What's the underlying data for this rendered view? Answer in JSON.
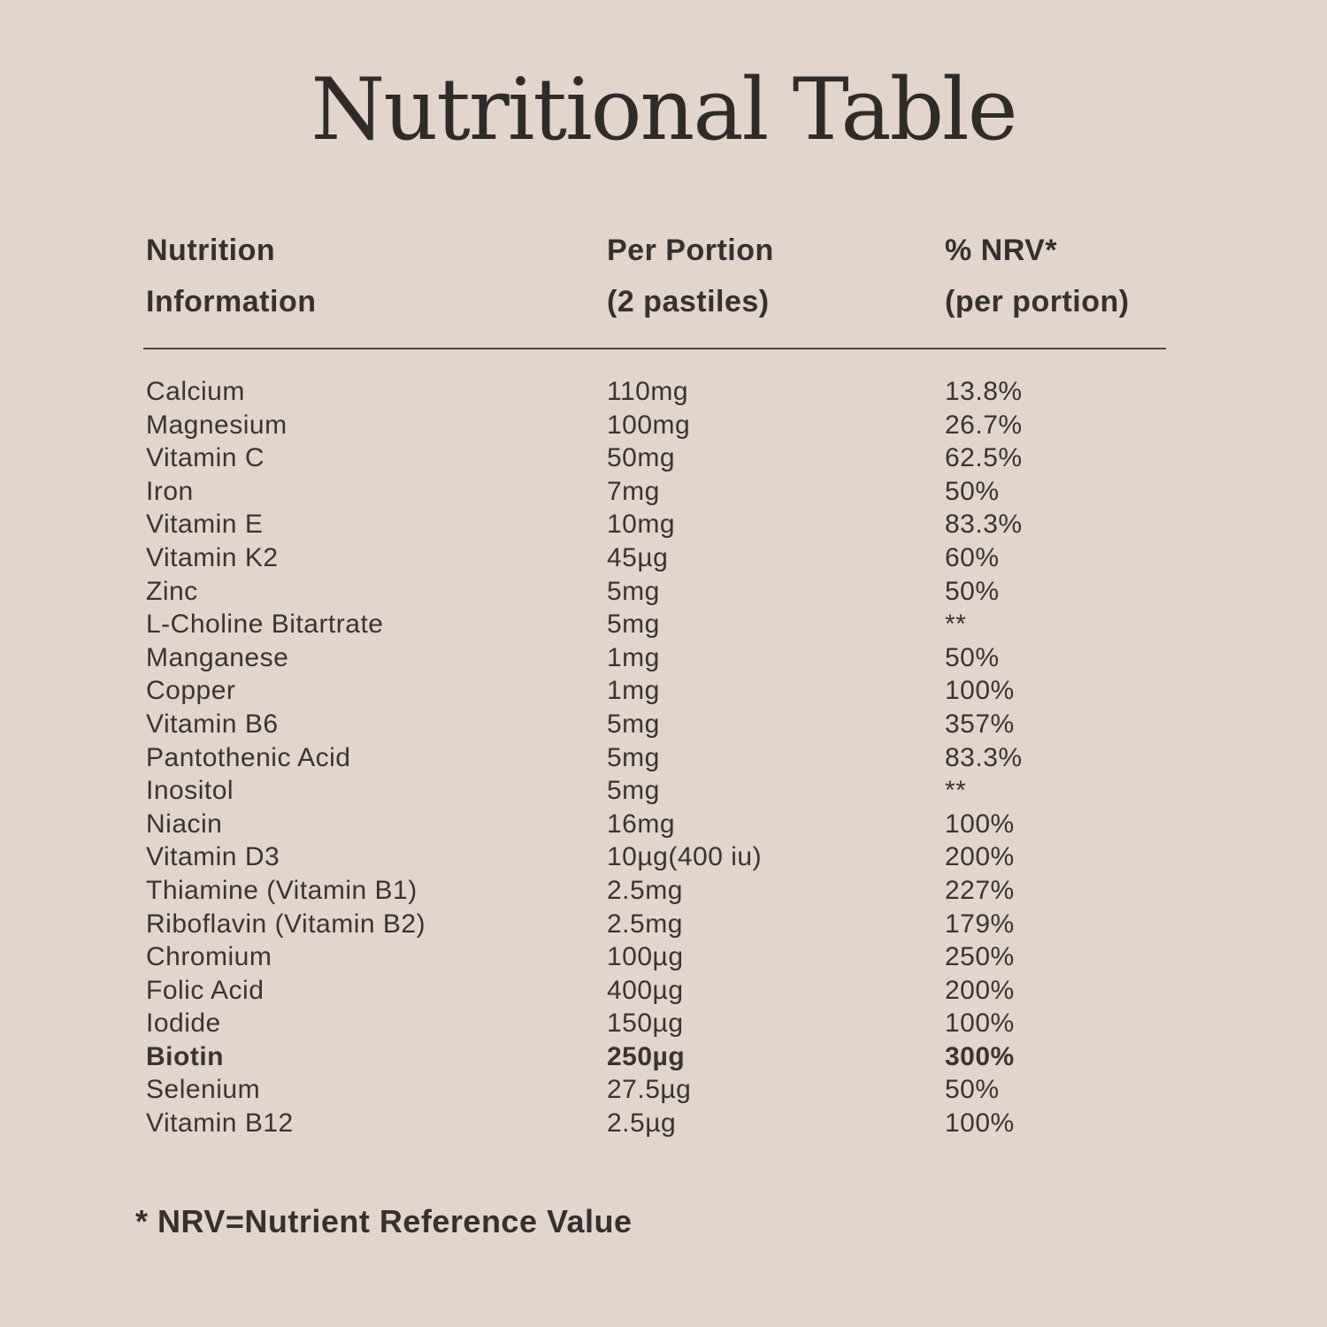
{
  "title": "Nutritional Table",
  "table": {
    "headers": [
      {
        "line1": "Nutrition",
        "line2": "Information"
      },
      {
        "line1": "Per Portion",
        "line2": "(2 pastiles)"
      },
      {
        "line1": "% NRV*",
        "line2": "(per portion)"
      }
    ],
    "rows": [
      {
        "name": "Calcium",
        "amount": "110mg",
        "nrv": "13.8%",
        "bold": false
      },
      {
        "name": "Magnesium",
        "amount": "100mg",
        "nrv": "26.7%",
        "bold": false
      },
      {
        "name": "Vitamin C",
        "amount": "50mg",
        "nrv": "62.5%",
        "bold": false
      },
      {
        "name": "Iron",
        "amount": "7mg",
        "nrv": "50%",
        "bold": false
      },
      {
        "name": "Vitamin E",
        "amount": "10mg",
        "nrv": "83.3%",
        "bold": false
      },
      {
        "name": "Vitamin K2",
        "amount": "45µg",
        "nrv": "60%",
        "bold": false
      },
      {
        "name": "Zinc",
        "amount": "5mg",
        "nrv": "50%",
        "bold": false
      },
      {
        "name": "L-Choline Bitartrate",
        "amount": "5mg",
        "nrv": "**",
        "bold": false
      },
      {
        "name": "Manganese",
        "amount": "1mg",
        "nrv": "50%",
        "bold": false
      },
      {
        "name": "Copper",
        "amount": "1mg",
        "nrv": "100%",
        "bold": false
      },
      {
        "name": "Vitamin B6",
        "amount": "5mg",
        "nrv": "357%",
        "bold": false
      },
      {
        "name": "Pantothenic Acid",
        "amount": "5mg",
        "nrv": "83.3%",
        "bold": false
      },
      {
        "name": "Inositol",
        "amount": "5mg",
        "nrv": "**",
        "bold": false
      },
      {
        "name": "Niacin",
        "amount": "16mg",
        "nrv": "100%",
        "bold": false
      },
      {
        "name": "Vitamin D3",
        "amount": "10µg(400 iu)",
        "nrv": "200%",
        "bold": false
      },
      {
        "name": "Thiamine (Vitamin B1)",
        "amount": "2.5mg",
        "nrv": "227%",
        "bold": false
      },
      {
        "name": "Riboflavin (Vitamin B2)",
        "amount": "2.5mg",
        "nrv": "179%",
        "bold": false
      },
      {
        "name": "Chromium",
        "amount": "100µg",
        "nrv": "250%",
        "bold": false
      },
      {
        "name": "Folic Acid",
        "amount": "400µg",
        "nrv": "200%",
        "bold": false
      },
      {
        "name": "Iodide",
        "amount": "150µg",
        "nrv": "100%",
        "bold": false
      },
      {
        "name": "Biotin",
        "amount": "250µg",
        "nrv": "300%",
        "bold": true
      },
      {
        "name": "Selenium",
        "amount": "27.5µg",
        "nrv": "50%",
        "bold": false
      },
      {
        "name": "Vitamin B12",
        "amount": "2.5µg",
        "nrv": "100%",
        "bold": false
      }
    ]
  },
  "footnote": "* NRV=Nutrient Reference Value",
  "colors": {
    "background": "#e3d5cc",
    "text": "#3a3430",
    "heading": "#2f2b28",
    "divider": "#54483e"
  }
}
